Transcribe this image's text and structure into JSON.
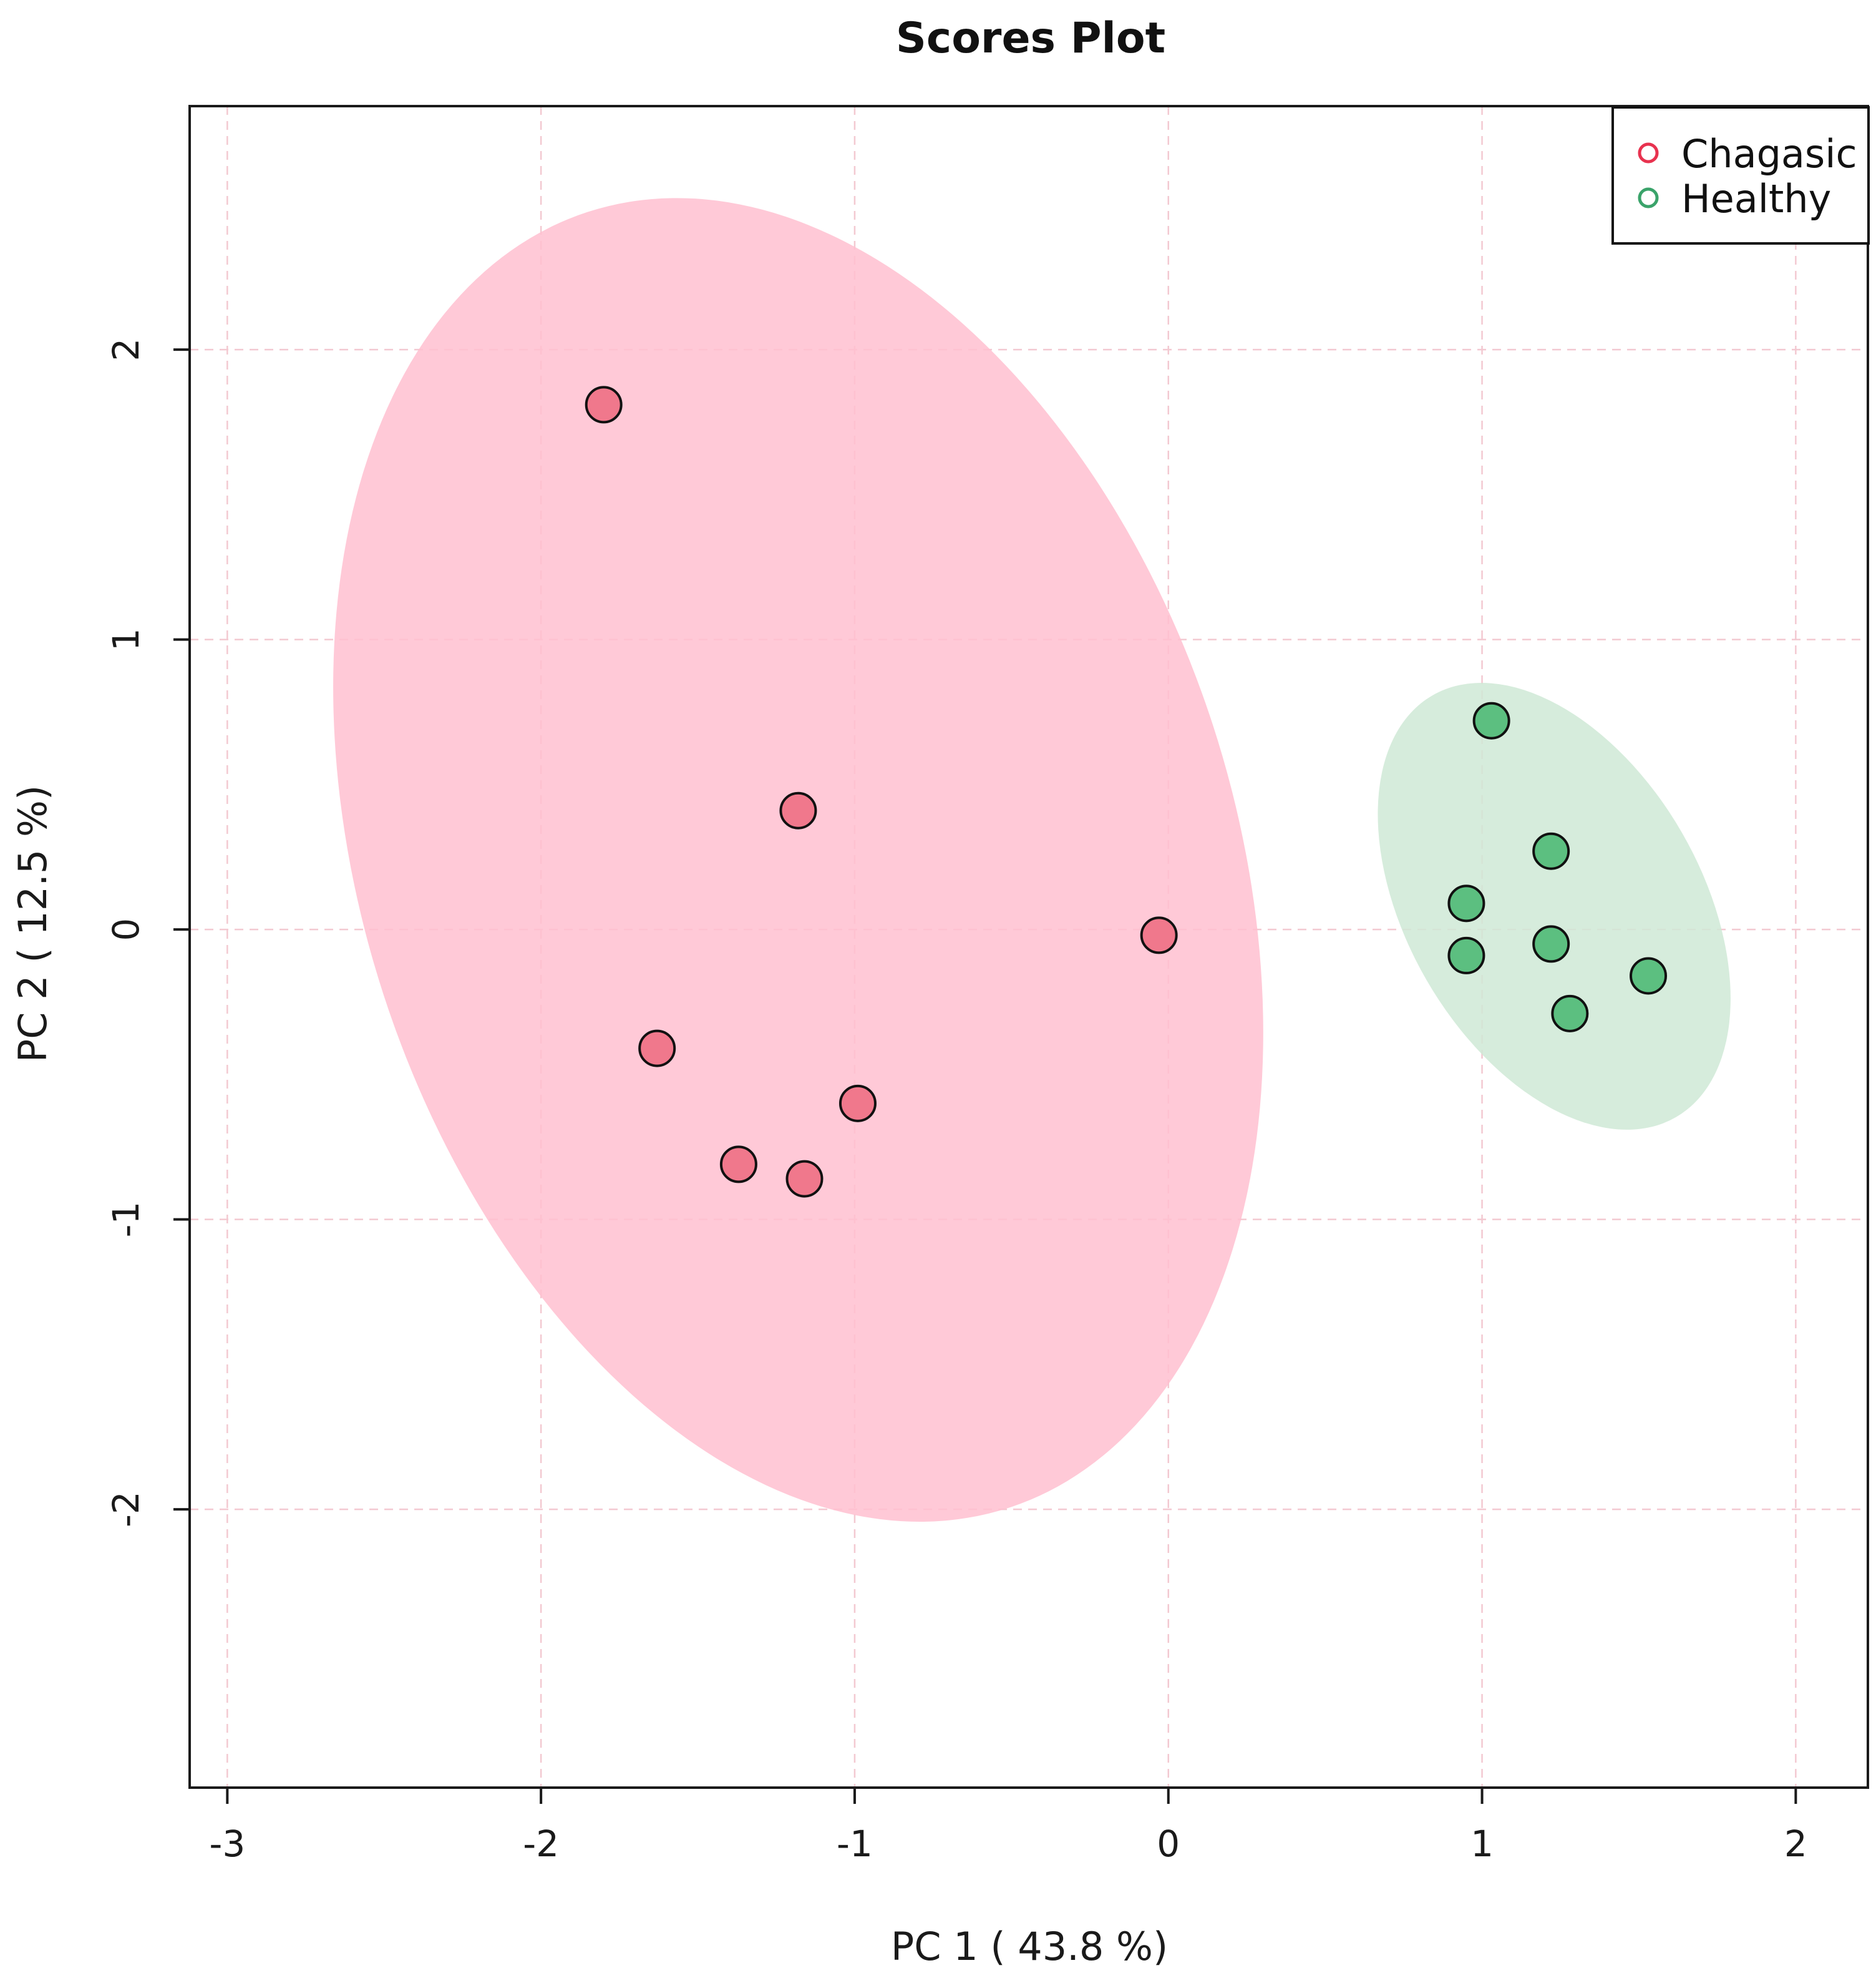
{
  "chart_data": {
    "type": "scatter",
    "title": "Scores Plot",
    "xlabel": "PC 1 ( 43.8 %)",
    "ylabel": "PC 2 ( 12.5 %)",
    "xlim": [
      -3.12,
      2.23
    ],
    "ylim": [
      -2.96,
      2.84
    ],
    "x_ticks": [
      -3,
      -2,
      -1,
      0,
      1,
      2
    ],
    "y_ticks": [
      -2,
      -1,
      0,
      1,
      2
    ],
    "x_tick_labels": [
      "-3",
      "-2",
      "-1",
      "0",
      "1",
      "2"
    ],
    "y_tick_labels": [
      "-2",
      "-1",
      "0",
      "1",
      "2"
    ],
    "grid": true,
    "legend_position": "top-right",
    "series": [
      {
        "name": "Chagasic",
        "color": "#f0788c",
        "legend_color": "#e8324f",
        "ellipse_color": "#ffc0d0",
        "ellipse": {
          "cx": -1.18,
          "cy": 0.24,
          "rx": 1.39,
          "ry": 2.35,
          "angle_deg": -18
        },
        "points": [
          {
            "x": -1.8,
            "y": 1.81
          },
          {
            "x": -1.18,
            "y": 0.41
          },
          {
            "x": -0.03,
            "y": -0.02
          },
          {
            "x": -1.63,
            "y": -0.41
          },
          {
            "x": -0.99,
            "y": -0.6
          },
          {
            "x": -1.37,
            "y": -0.81
          },
          {
            "x": -1.16,
            "y": -0.86
          }
        ]
      },
      {
        "name": "Healthy",
        "color": "#5cbf80",
        "legend_color": "#3aa36a",
        "ellipse_color": "#cfe9d6",
        "ellipse": {
          "cx": 1.23,
          "cy": 0.08,
          "rx": 0.47,
          "ry": 0.84,
          "angle_deg": -30
        },
        "points": [
          {
            "x": 1.03,
            "y": 0.72
          },
          {
            "x": 1.22,
            "y": 0.27
          },
          {
            "x": 0.95,
            "y": 0.09
          },
          {
            "x": 0.95,
            "y": -0.09
          },
          {
            "x": 1.22,
            "y": -0.05
          },
          {
            "x": 1.53,
            "y": -0.16
          },
          {
            "x": 1.28,
            "y": -0.29
          }
        ]
      }
    ]
  }
}
